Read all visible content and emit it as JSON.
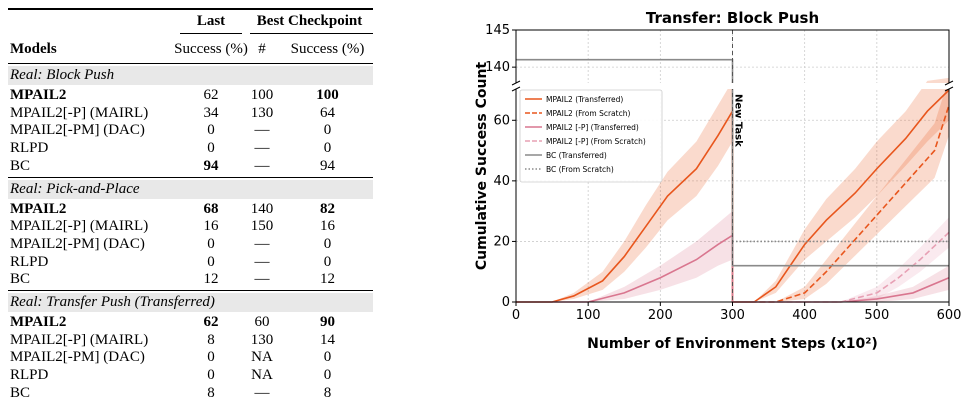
{
  "table": {
    "header": {
      "group_last": "Last",
      "group_best": "Best Checkpoint",
      "col_models": "Models",
      "col_last_success": "Success (%)",
      "col_best_num": "#",
      "col_best_success": "Success (%)"
    },
    "sections": [
      {
        "title": "Real: Block Push",
        "rows": [
          {
            "model": "MPAIL2",
            "last": "62",
            "num": "100",
            "best": "100",
            "bold": {
              "model": true,
              "last": false,
              "best": true
            }
          },
          {
            "model": "MPAIL2[-P] (MAIRL)",
            "last": "34",
            "num": "130",
            "best": "64",
            "bold": {}
          },
          {
            "model": "MPAIL2[-PM] (DAC)",
            "last": "0",
            "num": "—",
            "best": "0",
            "bold": {}
          },
          {
            "model": "RLPD",
            "last": "0",
            "num": "—",
            "best": "0",
            "bold": {}
          },
          {
            "model": "BC",
            "last": "94",
            "num": "—",
            "best": "94",
            "bold": {
              "last": true
            }
          }
        ]
      },
      {
        "title": "Real: Pick-and-Place",
        "rows": [
          {
            "model": "MPAIL2",
            "last": "68",
            "num": "140",
            "best": "82",
            "bold": {
              "model": true,
              "last": true,
              "best": true
            }
          },
          {
            "model": "MPAIL2[-P] (MAIRL)",
            "last": "16",
            "num": "150",
            "best": "16",
            "bold": {}
          },
          {
            "model": "MPAIL2[-PM] (DAC)",
            "last": "0",
            "num": "—",
            "best": "0",
            "bold": {}
          },
          {
            "model": "RLPD",
            "last": "0",
            "num": "—",
            "best": "0",
            "bold": {}
          },
          {
            "model": "BC",
            "last": "12",
            "num": "—",
            "best": "12",
            "bold": {}
          }
        ]
      },
      {
        "title": "Real: Transfer Push (Transferred)",
        "rows": [
          {
            "model": "MPAIL2",
            "last": "62",
            "num": "60",
            "best": "90",
            "bold": {
              "model": true,
              "last": true,
              "best": true
            }
          },
          {
            "model": "MPAIL2[-P] (MAIRL)",
            "last": "8",
            "num": "130",
            "best": "14",
            "bold": {}
          },
          {
            "model": "MPAIL2[-PM] (DAC)",
            "last": "0",
            "num": "NA",
            "best": "0",
            "bold": {}
          },
          {
            "model": "RLPD",
            "last": "0",
            "num": "NA",
            "best": "0",
            "bold": {}
          },
          {
            "model": "BC",
            "last": "8",
            "num": "—",
            "best": "8",
            "bold": {}
          }
        ]
      }
    ]
  },
  "chart_data": {
    "type": "line",
    "title": "Transfer: Block Push",
    "xlabel": "Number of Environment Steps (x10²)",
    "ylabel": "Cumulative Success Count",
    "xlim": [
      0,
      600
    ],
    "ylim_lower": [
      0,
      70
    ],
    "ylim_upper": [
      138,
      145
    ],
    "axis_break": true,
    "x_ticks": [
      "0",
      "100",
      "200",
      "300",
      "400",
      "500",
      "600"
    ],
    "y_ticks": [
      "0",
      "20",
      "40",
      "60",
      "140",
      "145"
    ],
    "grid": true,
    "legend_position": "upper-left",
    "annotation": {
      "text": "New Task",
      "x": 300
    },
    "series": [
      {
        "name": "MPAIL2 (Transferred)",
        "color": "#e8561d",
        "style": "solid",
        "x": [
          0,
          50,
          80,
          120,
          150,
          180,
          210,
          250,
          280,
          300,
          300,
          330,
          360,
          400,
          430,
          470,
          500,
          540,
          570,
          600
        ],
        "y": [
          0,
          0,
          2,
          7,
          15,
          25,
          35,
          44,
          55,
          63,
          0,
          0,
          5,
          19,
          27,
          36,
          44,
          54,
          63,
          70
        ],
        "band": [
          0,
          0,
          1,
          3,
          5,
          7,
          8,
          9,
          10,
          10,
          0,
          0,
          2,
          5,
          7,
          8,
          9,
          9,
          10,
          10
        ]
      },
      {
        "name": "MPAIL2 (From Scratch)",
        "color": "#e8561d",
        "style": "dashed",
        "x": [
          300,
          330,
          360,
          400,
          430,
          460,
          490,
          520,
          550,
          580,
          600
        ],
        "y": [
          0,
          0,
          0,
          3,
          10,
          18,
          26,
          34,
          42,
          50,
          65
        ],
        "band": [
          0,
          0,
          0,
          2,
          4,
          5,
          6,
          7,
          8,
          9,
          10
        ]
      },
      {
        "name": "MPAIL2 [-P] (Transferred)",
        "color": "#d9768f",
        "style": "solid",
        "x": [
          0,
          100,
          150,
          200,
          250,
          280,
          300,
          300,
          450,
          500,
          550,
          600
        ],
        "y": [
          0,
          0,
          3,
          8,
          14,
          19,
          22,
          0,
          0,
          1,
          3,
          8
        ],
        "band": [
          0,
          0,
          2,
          4,
          6,
          7,
          8,
          0,
          0,
          1,
          2,
          4
        ]
      },
      {
        "name": "MPAIL2 [-P] (From Scratch)",
        "color": "#e7a0b4",
        "style": "dashed",
        "x": [
          300,
          450,
          500,
          530,
          560,
          600
        ],
        "y": [
          0,
          0,
          3,
          8,
          14,
          23
        ],
        "band": [
          0,
          0,
          2,
          3,
          4,
          5
        ]
      },
      {
        "name": "BC (Transferred)",
        "color": "#8a8a8a",
        "style": "solid",
        "x": [
          0,
          300,
          300,
          600
        ],
        "y": [
          141,
          141,
          12,
          12
        ]
      },
      {
        "name": "BC (From Scratch)",
        "color": "#8a8a8a",
        "style": "dotted",
        "x": [
          300,
          600
        ],
        "y": [
          20,
          20
        ]
      }
    ]
  }
}
